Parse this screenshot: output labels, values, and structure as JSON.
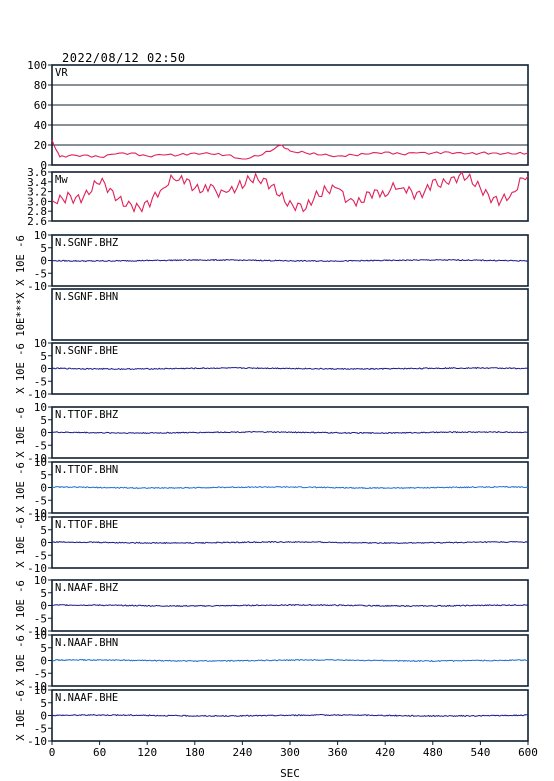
{
  "title": "2022/08/12 02:50",
  "colors": {
    "frame": "#102030",
    "vr_line": "#e0205a",
    "mw_line": "#e0205a",
    "trace_dark": "#1a1a8c",
    "trace_light": "#1e6fd0"
  },
  "chart_data": [
    {
      "type": "line",
      "label": "VR",
      "ylim": [
        0,
        100
      ],
      "ytick_labels": [
        "100",
        "80",
        "60",
        "40",
        "20",
        "0"
      ],
      "grid": true,
      "series": [
        {
          "x": [
            0,
            10,
            20,
            40,
            60,
            80,
            100,
            120,
            140,
            160,
            180,
            200,
            220,
            240,
            260,
            280,
            290,
            300,
            320,
            340,
            360,
            380,
            400,
            420,
            440,
            460,
            480,
            500,
            520,
            540,
            560,
            580,
            600
          ],
          "values": [
            25,
            8,
            9,
            10,
            8,
            11,
            12,
            9,
            10,
            10,
            12,
            11,
            10,
            6,
            9,
            16,
            20,
            14,
            12,
            10,
            9,
            10,
            11,
            13,
            11,
            12,
            12,
            13,
            11,
            12,
            12,
            11,
            12
          ]
        }
      ]
    },
    {
      "type": "line",
      "label": "Mw",
      "ylim": [
        2.5,
        3.7
      ],
      "ytick_labels": [
        "3.6",
        "3.4",
        "3.2",
        "3.0",
        "2.8",
        "2.6"
      ],
      "grid": false,
      "series": [
        {
          "x": [
            0,
            20,
            40,
            60,
            80,
            100,
            120,
            140,
            160,
            180,
            200,
            220,
            240,
            260,
            280,
            300,
            320,
            340,
            360,
            380,
            400,
            420,
            440,
            460,
            480,
            500,
            520,
            540,
            560,
            580,
            600
          ],
          "values": [
            3.0,
            3.2,
            3.1,
            3.4,
            3.0,
            2.9,
            3.0,
            3.3,
            3.5,
            3.3,
            3.4,
            3.2,
            3.3,
            3.5,
            3.4,
            3.0,
            2.8,
            3.1,
            3.3,
            3.0,
            3.2,
            3.1,
            3.3,
            3.2,
            3.5,
            3.4,
            3.5,
            3.3,
            3.1,
            3.2,
            3.6
          ]
        }
      ]
    },
    {
      "type": "line",
      "label": "N.SGNF.BHZ",
      "ylabel": "X 10E -6",
      "ylim": [
        -10,
        10
      ],
      "ytick_labels": [
        "10",
        "5",
        "0",
        "-5",
        "-10"
      ],
      "series": [
        {
          "name": "N.SGNF.BHZ",
          "values": [
            0,
            0
          ]
        }
      ]
    },
    {
      "type": "line",
      "label": "N.SGNF.BHN",
      "ylabel": "10E***X",
      "ytick_labels": [],
      "series": []
    },
    {
      "type": "line",
      "label": "N.SGNF.BHE",
      "ylabel": "X 10E -6",
      "ylim": [
        -10,
        10
      ],
      "ytick_labels": [
        "10",
        "5",
        "0",
        "-5",
        "-10"
      ],
      "series": [
        {
          "name": "N.SGNF.BHE",
          "values": [
            0,
            0
          ]
        }
      ]
    },
    {
      "type": "line",
      "label": "N.TTOF.BHZ",
      "ylabel": "X 10E -6",
      "ylim": [
        -10,
        10
      ],
      "ytick_labels": [
        "10",
        "5",
        "0",
        "-5",
        "-10"
      ],
      "series": [
        {
          "name": "N.TTOF.BHZ",
          "values": [
            0,
            0
          ]
        }
      ]
    },
    {
      "type": "line",
      "label": "N.TTOF.BHN",
      "ylabel": "X 10E -6",
      "ylim": [
        -10,
        10
      ],
      "ytick_labels": [
        "10",
        "5",
        "0",
        "-5",
        "-10"
      ],
      "series": [
        {
          "name": "N.TTOF.BHN",
          "values": [
            0,
            0
          ]
        }
      ]
    },
    {
      "type": "line",
      "label": "N.TTOF.BHE",
      "ylabel": "X 10E -6",
      "ylim": [
        -10,
        10
      ],
      "ytick_labels": [
        "10",
        "5",
        "0",
        "-5",
        "-10"
      ],
      "series": [
        {
          "name": "N.TTOF.BHE",
          "values": [
            0,
            0
          ]
        }
      ]
    },
    {
      "type": "line",
      "label": "N.NAAF.BHZ",
      "ylabel": "X 10E -6",
      "ylim": [
        -10,
        10
      ],
      "ytick_labels": [
        "10",
        "5",
        "0",
        "-5",
        "-10"
      ],
      "series": [
        {
          "name": "N.NAAF.BHZ",
          "values": [
            0,
            0
          ]
        }
      ]
    },
    {
      "type": "line",
      "label": "N.NAAF.BHN",
      "ylabel": "X 10E -6",
      "ylim": [
        -10,
        10
      ],
      "ytick_labels": [
        "10",
        "5",
        "0",
        "-5",
        "-10"
      ],
      "series": [
        {
          "name": "N.NAAF.BHN",
          "values": [
            0,
            0
          ]
        }
      ]
    },
    {
      "type": "line",
      "label": "N.NAAF.BHE",
      "ylabel": "X 10E -6",
      "ylim": [
        -10,
        10
      ],
      "ytick_labels": [
        "10",
        "5",
        "0",
        "-5",
        "-10"
      ],
      "series": [
        {
          "name": "N.NAAF.BHE",
          "values": [
            0,
            0
          ]
        }
      ]
    }
  ],
  "xaxis": {
    "label": "SEC",
    "xlim": [
      0,
      600
    ],
    "ticks": [
      0,
      60,
      120,
      180,
      240,
      300,
      360,
      420,
      480,
      540,
      600
    ],
    "tick_labels": [
      "0",
      "60",
      "120",
      "180",
      "240",
      "300",
      "360",
      "420",
      "480",
      "540",
      "600"
    ]
  }
}
